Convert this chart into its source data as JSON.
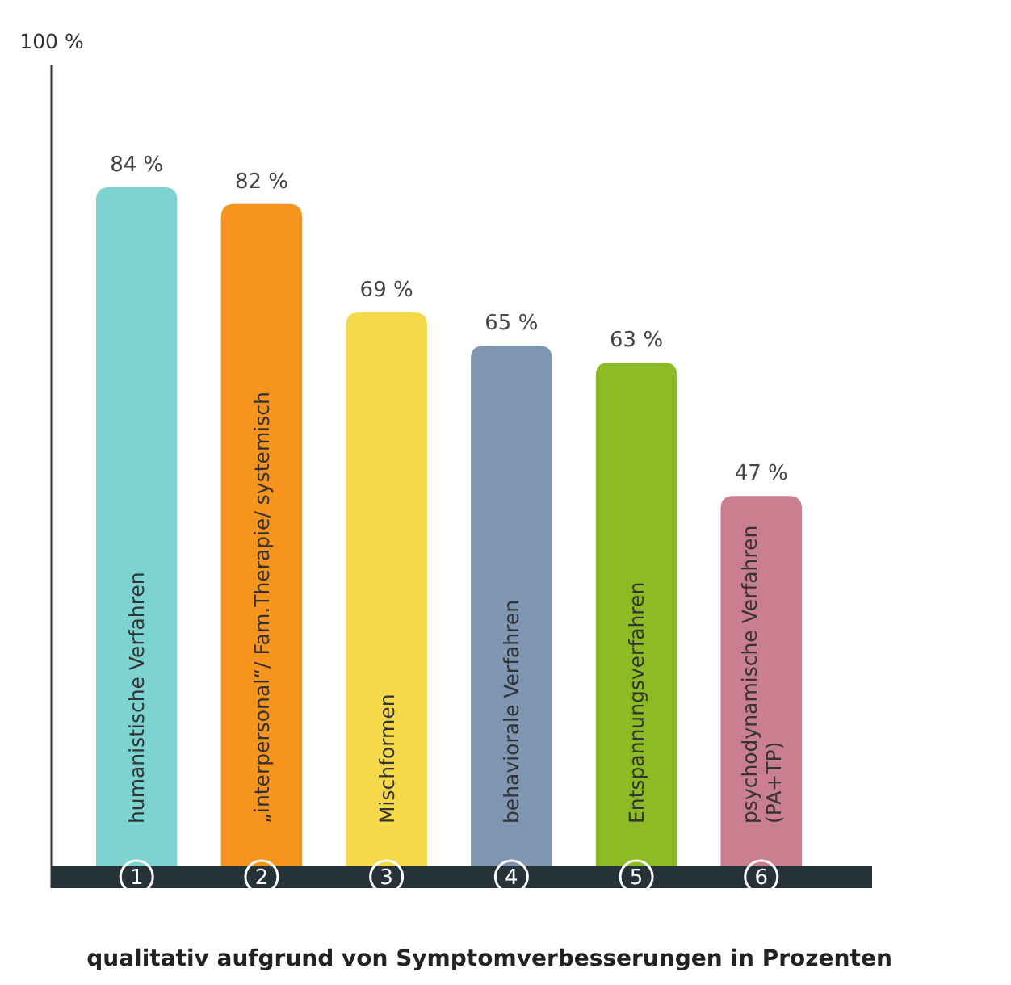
{
  "chart_data": {
    "type": "bar",
    "title": "qualitativ aufgrund von Symptomverbesserungen in Prozenten",
    "categories": [
      "humanistische Verfahren",
      "„interpersonal“/ Fam.Therapie/ systemisch",
      "Mischformen",
      "behaviorale Verfahren",
      "Entspannungsverfahren",
      "psychodynamische Verfahren (PA+TP)"
    ],
    "values": [
      84,
      82,
      69,
      65,
      63,
      47
    ],
    "colors": [
      "#7dd3cf",
      "#f7941d",
      "#f5d949",
      "#7f96b3",
      "#8cbb25",
      "#c97f8f"
    ],
    "value_labels": [
      "84 %",
      "82 %",
      "69 %",
      "65 %",
      "63 %",
      "47 %"
    ],
    "annotations": [
      "100 %",
      {
        "text": "1",
        "x": "humanistische Verfahren"
      },
      {
        "text": "2",
        "x": "„interpersonal“/ Fam.Therapie/ systemisch"
      },
      {
        "text": "3",
        "x": "Mischformen"
      },
      {
        "text": "4",
        "x": "behaviorale Verfahren"
      },
      {
        "text": "5",
        "x": "Entspannungsverfahren"
      },
      {
        "text": "6",
        "x": "psychodynamische Verfahren (PA+TP)"
      }
    ]
  }
}
